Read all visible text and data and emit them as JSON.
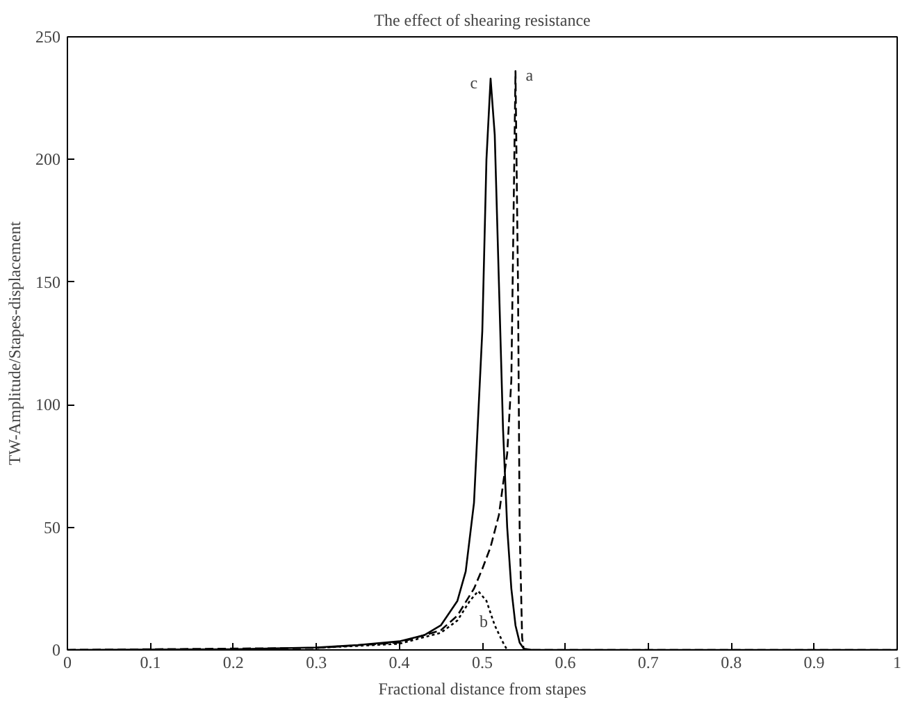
{
  "chart_data": {
    "type": "line",
    "title": "The effect of shearing resistance",
    "xlabel": "Fractional distance from stapes",
    "ylabel": "TW-Amplitude/Stapes-displacement",
    "xlim": [
      0,
      1
    ],
    "ylim": [
      0,
      250
    ],
    "xticks": [
      0,
      0.1,
      0.2,
      0.3,
      0.4,
      0.5,
      0.6,
      0.7,
      0.8,
      0.9,
      1
    ],
    "yticks": [
      0,
      50,
      100,
      150,
      200,
      250
    ],
    "grid": false,
    "marker": "none",
    "series": [
      {
        "color": "#000000",
        "line_style": "solid",
        "x": [
          0,
          0.2,
          0.3,
          0.35,
          0.4,
          0.43,
          0.45,
          0.47,
          0.48,
          0.49,
          0.5,
          0.505,
          0.51,
          0.515,
          0.52,
          0.525,
          0.53,
          0.535,
          0.54,
          0.545,
          0.55,
          0.56,
          1
        ],
        "values": [
          0,
          0.3,
          1,
          2,
          3.5,
          6,
          10,
          20,
          32,
          60,
          130,
          200,
          233,
          210,
          150,
          90,
          50,
          25,
          10,
          3,
          0.5,
          0,
          0
        ]
      },
      {
        "color": "#000000",
        "line_style": "dashed",
        "x": [
          0,
          0.3,
          0.4,
          0.45,
          0.47,
          0.49,
          0.5,
          0.51,
          0.52,
          0.53,
          0.535,
          0.54,
          0.543,
          0.545,
          0.548,
          0.55,
          1
        ],
        "values": [
          0,
          0.8,
          3,
          8,
          14,
          25,
          33,
          42,
          55,
          80,
          110,
          236,
          150,
          50,
          5,
          0,
          0
        ]
      },
      {
        "color": "#000000",
        "line_style": "dotted",
        "x": [
          0.3,
          0.4,
          0.45,
          0.47,
          0.485,
          0.495,
          0.505,
          0.515,
          0.525,
          0.53
        ],
        "values": [
          0.8,
          2.5,
          7,
          12,
          20,
          24,
          20,
          10,
          3,
          0
        ]
      }
    ],
    "annotations": [
      {
        "text": "c",
        "x": 0.51,
        "y": 233
      },
      {
        "text": "a",
        "x": 0.54,
        "y": 236
      },
      {
        "text": "b",
        "x": 0.515,
        "y": 10
      }
    ]
  }
}
